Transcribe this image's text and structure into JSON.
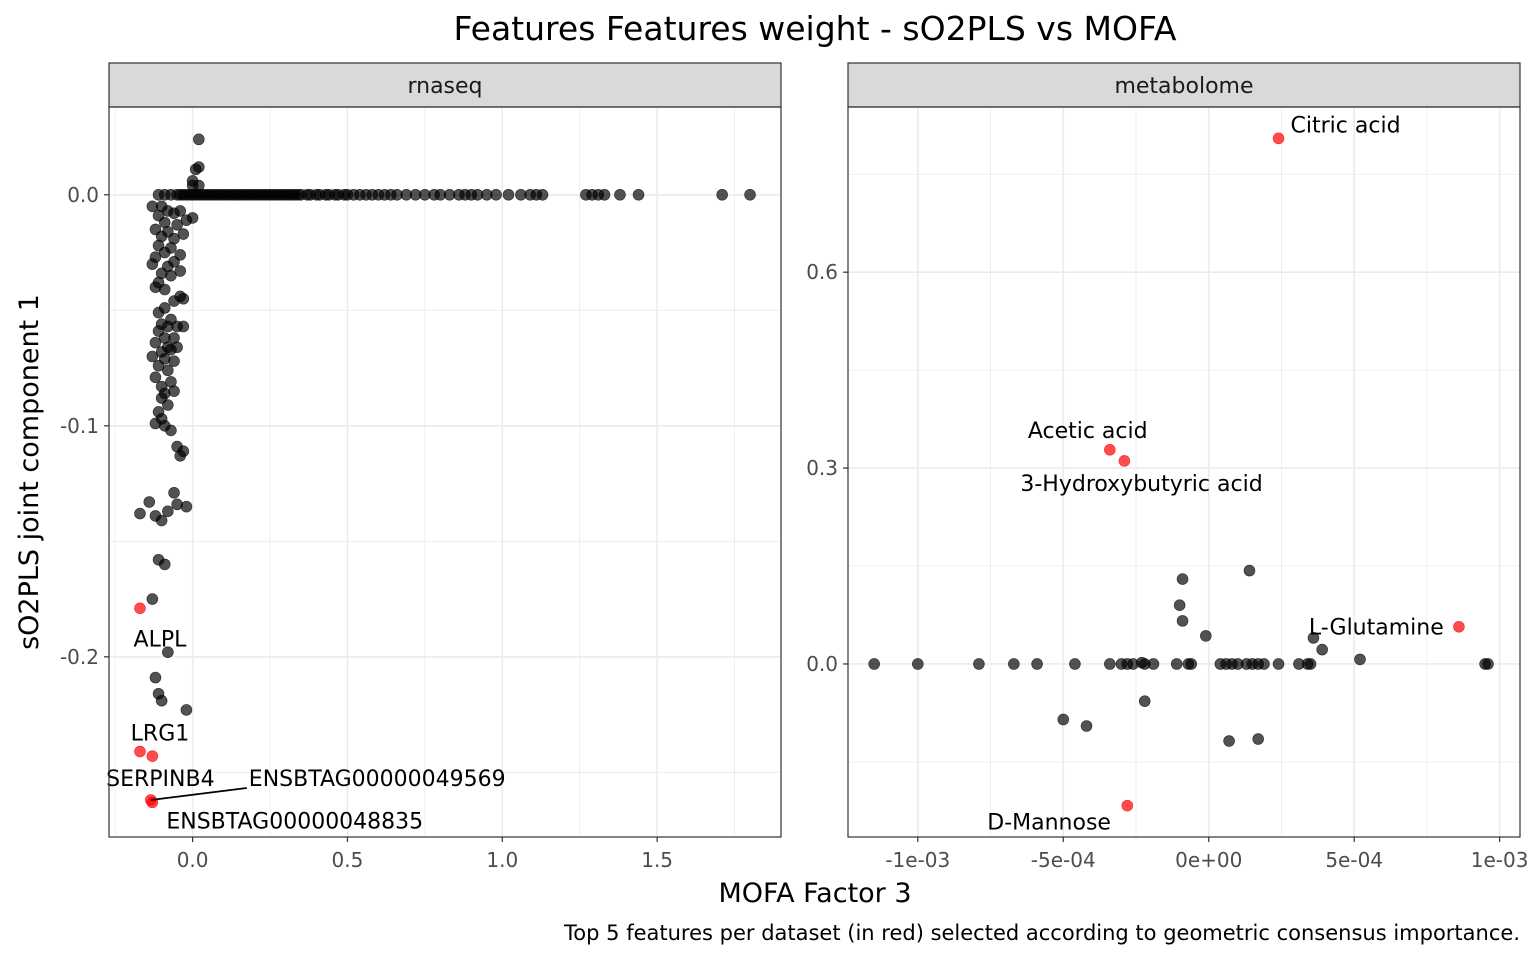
{
  "chart_data": {
    "type": "scatter",
    "title": "Features Features weight - sO2PLS vs MOFA",
    "xlabel": "MOFA Factor 3",
    "ylabel": "sO2PLS joint component 1",
    "caption": "Top 5 features per dataset (in red) selected according to geometric consensus importance.",
    "colors": {
      "default": "#000000",
      "highlight": "#ff0000",
      "strip_bg": "#d9d9d9",
      "grid": "#ebebeb"
    },
    "panels": [
      {
        "name": "rnaseq",
        "xlim": [
          -0.27,
          1.9
        ],
        "ylim": [
          -0.278,
          0.038
        ],
        "x_ticks": [
          0.0,
          0.5,
          1.0,
          1.5
        ],
        "x_tick_labels": [
          "0.0",
          "0.5",
          "1.0",
          "1.5"
        ],
        "y_ticks": [
          0.0,
          -0.1,
          -0.2
        ],
        "y_tick_labels": [
          "0.0",
          "-0.1",
          "-0.2"
        ],
        "points": [
          [
            0.02,
            0.024
          ],
          [
            0.02,
            0.012
          ],
          [
            0.01,
            0.011
          ],
          [
            0.0,
            0.006
          ],
          [
            0.0,
            0.004
          ],
          [
            0.02,
            0.004
          ],
          [
            -0.11,
            0.0
          ],
          [
            -0.09,
            0.0
          ],
          [
            -0.07,
            0.0
          ],
          [
            -0.05,
            0.0
          ],
          [
            -0.04,
            0.0
          ],
          [
            -0.03,
            0.0
          ],
          [
            -0.02,
            0.0
          ],
          [
            -0.01,
            0.0
          ],
          [
            0.0,
            0.0
          ],
          [
            0.01,
            0.0
          ],
          [
            0.02,
            0.0
          ],
          [
            0.03,
            0.0
          ],
          [
            0.04,
            0.0
          ],
          [
            0.05,
            0.0
          ],
          [
            0.06,
            0.0
          ],
          [
            0.07,
            0.0
          ],
          [
            0.08,
            0.0
          ],
          [
            0.09,
            0.0
          ],
          [
            0.1,
            0.0
          ],
          [
            0.11,
            0.0
          ],
          [
            0.12,
            0.0
          ],
          [
            0.13,
            0.0
          ],
          [
            0.14,
            0.0
          ],
          [
            0.15,
            0.0
          ],
          [
            0.16,
            0.0
          ],
          [
            0.17,
            0.0
          ],
          [
            0.18,
            0.0
          ],
          [
            0.19,
            0.0
          ],
          [
            0.2,
            0.0
          ],
          [
            0.21,
            0.0
          ],
          [
            0.22,
            0.0
          ],
          [
            0.23,
            0.0
          ],
          [
            0.24,
            0.0
          ],
          [
            0.25,
            0.0
          ],
          [
            0.26,
            0.0
          ],
          [
            0.27,
            0.0
          ],
          [
            0.28,
            0.0
          ],
          [
            0.29,
            0.0
          ],
          [
            0.3,
            0.0
          ],
          [
            0.31,
            0.0
          ],
          [
            0.32,
            0.0
          ],
          [
            0.33,
            0.0
          ],
          [
            0.34,
            0.0
          ],
          [
            0.35,
            0.0
          ],
          [
            0.37,
            0.0
          ],
          [
            0.38,
            0.0
          ],
          [
            0.4,
            0.0
          ],
          [
            0.41,
            0.0
          ],
          [
            0.43,
            0.0
          ],
          [
            0.44,
            0.0
          ],
          [
            0.46,
            0.0
          ],
          [
            0.47,
            0.0
          ],
          [
            0.49,
            0.0
          ],
          [
            0.5,
            0.0
          ],
          [
            0.52,
            0.0
          ],
          [
            0.54,
            0.0
          ],
          [
            0.56,
            0.0
          ],
          [
            0.58,
            0.0
          ],
          [
            0.6,
            0.0
          ],
          [
            0.62,
            0.0
          ],
          [
            0.64,
            0.0
          ],
          [
            0.66,
            0.0
          ],
          [
            0.69,
            0.0
          ],
          [
            0.72,
            0.0
          ],
          [
            0.75,
            0.0
          ],
          [
            0.78,
            0.0
          ],
          [
            0.8,
            0.0
          ],
          [
            0.83,
            0.0
          ],
          [
            0.86,
            0.0
          ],
          [
            0.88,
            0.0
          ],
          [
            0.9,
            0.0
          ],
          [
            0.92,
            0.0
          ],
          [
            0.95,
            0.0
          ],
          [
            0.98,
            0.0
          ],
          [
            1.02,
            0.0
          ],
          [
            1.06,
            0.0
          ],
          [
            1.09,
            0.0
          ],
          [
            1.11,
            0.0
          ],
          [
            1.13,
            0.0
          ],
          [
            1.27,
            0.0
          ],
          [
            1.29,
            0.0
          ],
          [
            1.31,
            0.0
          ],
          [
            1.33,
            0.0
          ],
          [
            1.38,
            0.0
          ],
          [
            1.44,
            0.0
          ],
          [
            1.71,
            0.0
          ],
          [
            1.8,
            0.0
          ],
          [
            -0.13,
            -0.005
          ],
          [
            -0.1,
            -0.005
          ],
          [
            -0.08,
            -0.007
          ],
          [
            -0.04,
            -0.007
          ],
          [
            -0.11,
            -0.009
          ],
          [
            -0.06,
            -0.008
          ],
          [
            -0.02,
            -0.011
          ],
          [
            0.0,
            -0.01
          ],
          [
            -0.09,
            -0.012
          ],
          [
            -0.05,
            -0.013
          ],
          [
            -0.12,
            -0.015
          ],
          [
            -0.08,
            -0.016
          ],
          [
            -0.03,
            -0.017
          ],
          [
            -0.1,
            -0.018
          ],
          [
            -0.06,
            -0.019
          ],
          [
            -0.11,
            -0.022
          ],
          [
            -0.07,
            -0.023
          ],
          [
            -0.09,
            -0.025
          ],
          [
            -0.04,
            -0.026
          ],
          [
            -0.12,
            -0.027
          ],
          [
            -0.06,
            -0.029
          ],
          [
            -0.13,
            -0.03
          ],
          [
            -0.08,
            -0.031
          ],
          [
            -0.04,
            -0.033
          ],
          [
            -0.1,
            -0.034
          ],
          [
            -0.07,
            -0.035
          ],
          [
            -0.11,
            -0.038
          ],
          [
            -0.12,
            -0.04
          ],
          [
            -0.09,
            -0.041
          ],
          [
            -0.04,
            -0.044
          ],
          [
            -0.06,
            -0.046
          ],
          [
            -0.03,
            -0.045
          ],
          [
            -0.09,
            -0.049
          ],
          [
            -0.11,
            -0.051
          ],
          [
            -0.07,
            -0.054
          ],
          [
            -0.1,
            -0.056
          ],
          [
            -0.08,
            -0.057
          ],
          [
            -0.05,
            -0.057
          ],
          [
            -0.03,
            -0.057
          ],
          [
            -0.11,
            -0.059
          ],
          [
            -0.09,
            -0.062
          ],
          [
            -0.06,
            -0.062
          ],
          [
            -0.12,
            -0.064
          ],
          [
            -0.08,
            -0.066
          ],
          [
            -0.05,
            -0.066
          ],
          [
            -0.1,
            -0.068
          ],
          [
            -0.07,
            -0.067
          ],
          [
            -0.13,
            -0.07
          ],
          [
            -0.09,
            -0.071
          ],
          [
            -0.06,
            -0.072
          ],
          [
            -0.11,
            -0.074
          ],
          [
            -0.08,
            -0.076
          ],
          [
            -0.12,
            -0.079
          ],
          [
            -0.07,
            -0.081
          ],
          [
            -0.1,
            -0.083
          ],
          [
            -0.09,
            -0.086
          ],
          [
            -0.06,
            -0.085
          ],
          [
            -0.1,
            -0.088
          ],
          [
            -0.08,
            -0.091
          ],
          [
            -0.11,
            -0.094
          ],
          [
            -0.1,
            -0.097
          ],
          [
            -0.12,
            -0.099
          ],
          [
            -0.09,
            -0.1
          ],
          [
            -0.07,
            -0.102
          ],
          [
            -0.05,
            -0.109
          ],
          [
            -0.03,
            -0.111
          ],
          [
            -0.04,
            -0.113
          ],
          [
            -0.17,
            -0.138
          ],
          [
            -0.12,
            -0.139
          ],
          [
            -0.08,
            -0.137
          ],
          [
            -0.06,
            -0.129
          ],
          [
            -0.05,
            -0.134
          ],
          [
            -0.02,
            -0.135
          ],
          [
            -0.14,
            -0.133
          ],
          [
            -0.1,
            -0.141
          ],
          [
            -0.11,
            -0.158
          ],
          [
            -0.09,
            -0.16
          ],
          [
            -0.13,
            -0.175
          ],
          [
            -0.08,
            -0.198
          ],
          [
            -0.12,
            -0.209
          ],
          [
            -0.11,
            -0.216
          ],
          [
            -0.1,
            -0.219
          ],
          [
            -0.02,
            -0.223
          ]
        ],
        "highlights": [
          {
            "x": -0.17,
            "y": -0.179,
            "label": "ALPL"
          },
          {
            "x": -0.17,
            "y": -0.241,
            "label": "LRG1"
          },
          {
            "x": -0.13,
            "y": -0.243,
            "label": "SERPINB4"
          },
          {
            "x": -0.135,
            "y": -0.262,
            "label": "ENSBTAG00000049569"
          },
          {
            "x": -0.13,
            "y": -0.263,
            "label": "ENSBTAG00000048835"
          }
        ]
      },
      {
        "name": "metabolome",
        "xlim": [
          -0.00124,
          0.00107
        ],
        "ylim": [
          -0.265,
          0.853
        ],
        "x_ticks": [
          -0.001,
          -0.0005,
          0.0,
          0.0005,
          0.001
        ],
        "x_tick_labels": [
          "-1e-03",
          "-5e-04",
          "0e+00",
          "5e-04",
          "1e-03"
        ],
        "y_ticks": [
          0.0,
          0.3,
          0.6
        ],
        "y_tick_labels": [
          "0.0",
          "0.3",
          "0.6"
        ],
        "points": [
          [
            -0.00115,
            0.0
          ],
          [
            -0.001,
            0.0
          ],
          [
            -0.00079,
            0.0
          ],
          [
            -0.00067,
            0.0
          ],
          [
            -0.00059,
            0.0
          ],
          [
            -0.00046,
            0.0
          ],
          [
            -0.00034,
            0.0
          ],
          [
            -0.0003,
            0.0
          ],
          [
            -0.00028,
            0.0
          ],
          [
            -0.00026,
            0.0
          ],
          [
            -0.00023,
            0.002
          ],
          [
            -0.00022,
            0.0
          ],
          [
            -0.00019,
            0.0
          ],
          [
            -0.00011,
            0.0
          ],
          [
            -7e-05,
            0.0
          ],
          [
            -6e-05,
            0.0
          ],
          [
            4e-05,
            0.0
          ],
          [
            6e-05,
            0.0
          ],
          [
            8e-05,
            0.0
          ],
          [
            0.0001,
            0.0
          ],
          [
            0.00013,
            0.0
          ],
          [
            0.00015,
            0.0
          ],
          [
            0.00017,
            0.0
          ],
          [
            0.00019,
            0.0
          ],
          [
            0.00024,
            0.0
          ],
          [
            0.00031,
            0.0
          ],
          [
            0.00034,
            0.0
          ],
          [
            0.00035,
            0.0
          ],
          [
            0.00095,
            0.0
          ],
          [
            0.00096,
            0.0
          ],
          [
            0.00052,
            0.007
          ],
          [
            0.00039,
            0.022
          ],
          [
            0.00036,
            0.04
          ],
          [
            -1e-05,
            0.043
          ],
          [
            -9e-05,
            0.066
          ],
          [
            -0.0001,
            0.09
          ],
          [
            -9e-05,
            0.13
          ],
          [
            0.00014,
            0.143
          ],
          [
            -0.00022,
            -0.057
          ],
          [
            -0.0005,
            -0.085
          ],
          [
            -0.00042,
            -0.095
          ],
          [
            7e-05,
            -0.118
          ],
          [
            0.00017,
            -0.115
          ]
        ],
        "highlights": [
          {
            "x": 0.00024,
            "y": 0.805,
            "label": "Citric acid"
          },
          {
            "x": -0.00034,
            "y": 0.328,
            "label": "Acetic acid"
          },
          {
            "x": -0.00029,
            "y": 0.311,
            "label": "3-Hydroxybutyric acid"
          },
          {
            "x": 0.00086,
            "y": 0.057,
            "label": "L-Glutamine"
          },
          {
            "x": -0.00028,
            "y": -0.217,
            "label": "D-Mannose"
          }
        ]
      }
    ]
  }
}
